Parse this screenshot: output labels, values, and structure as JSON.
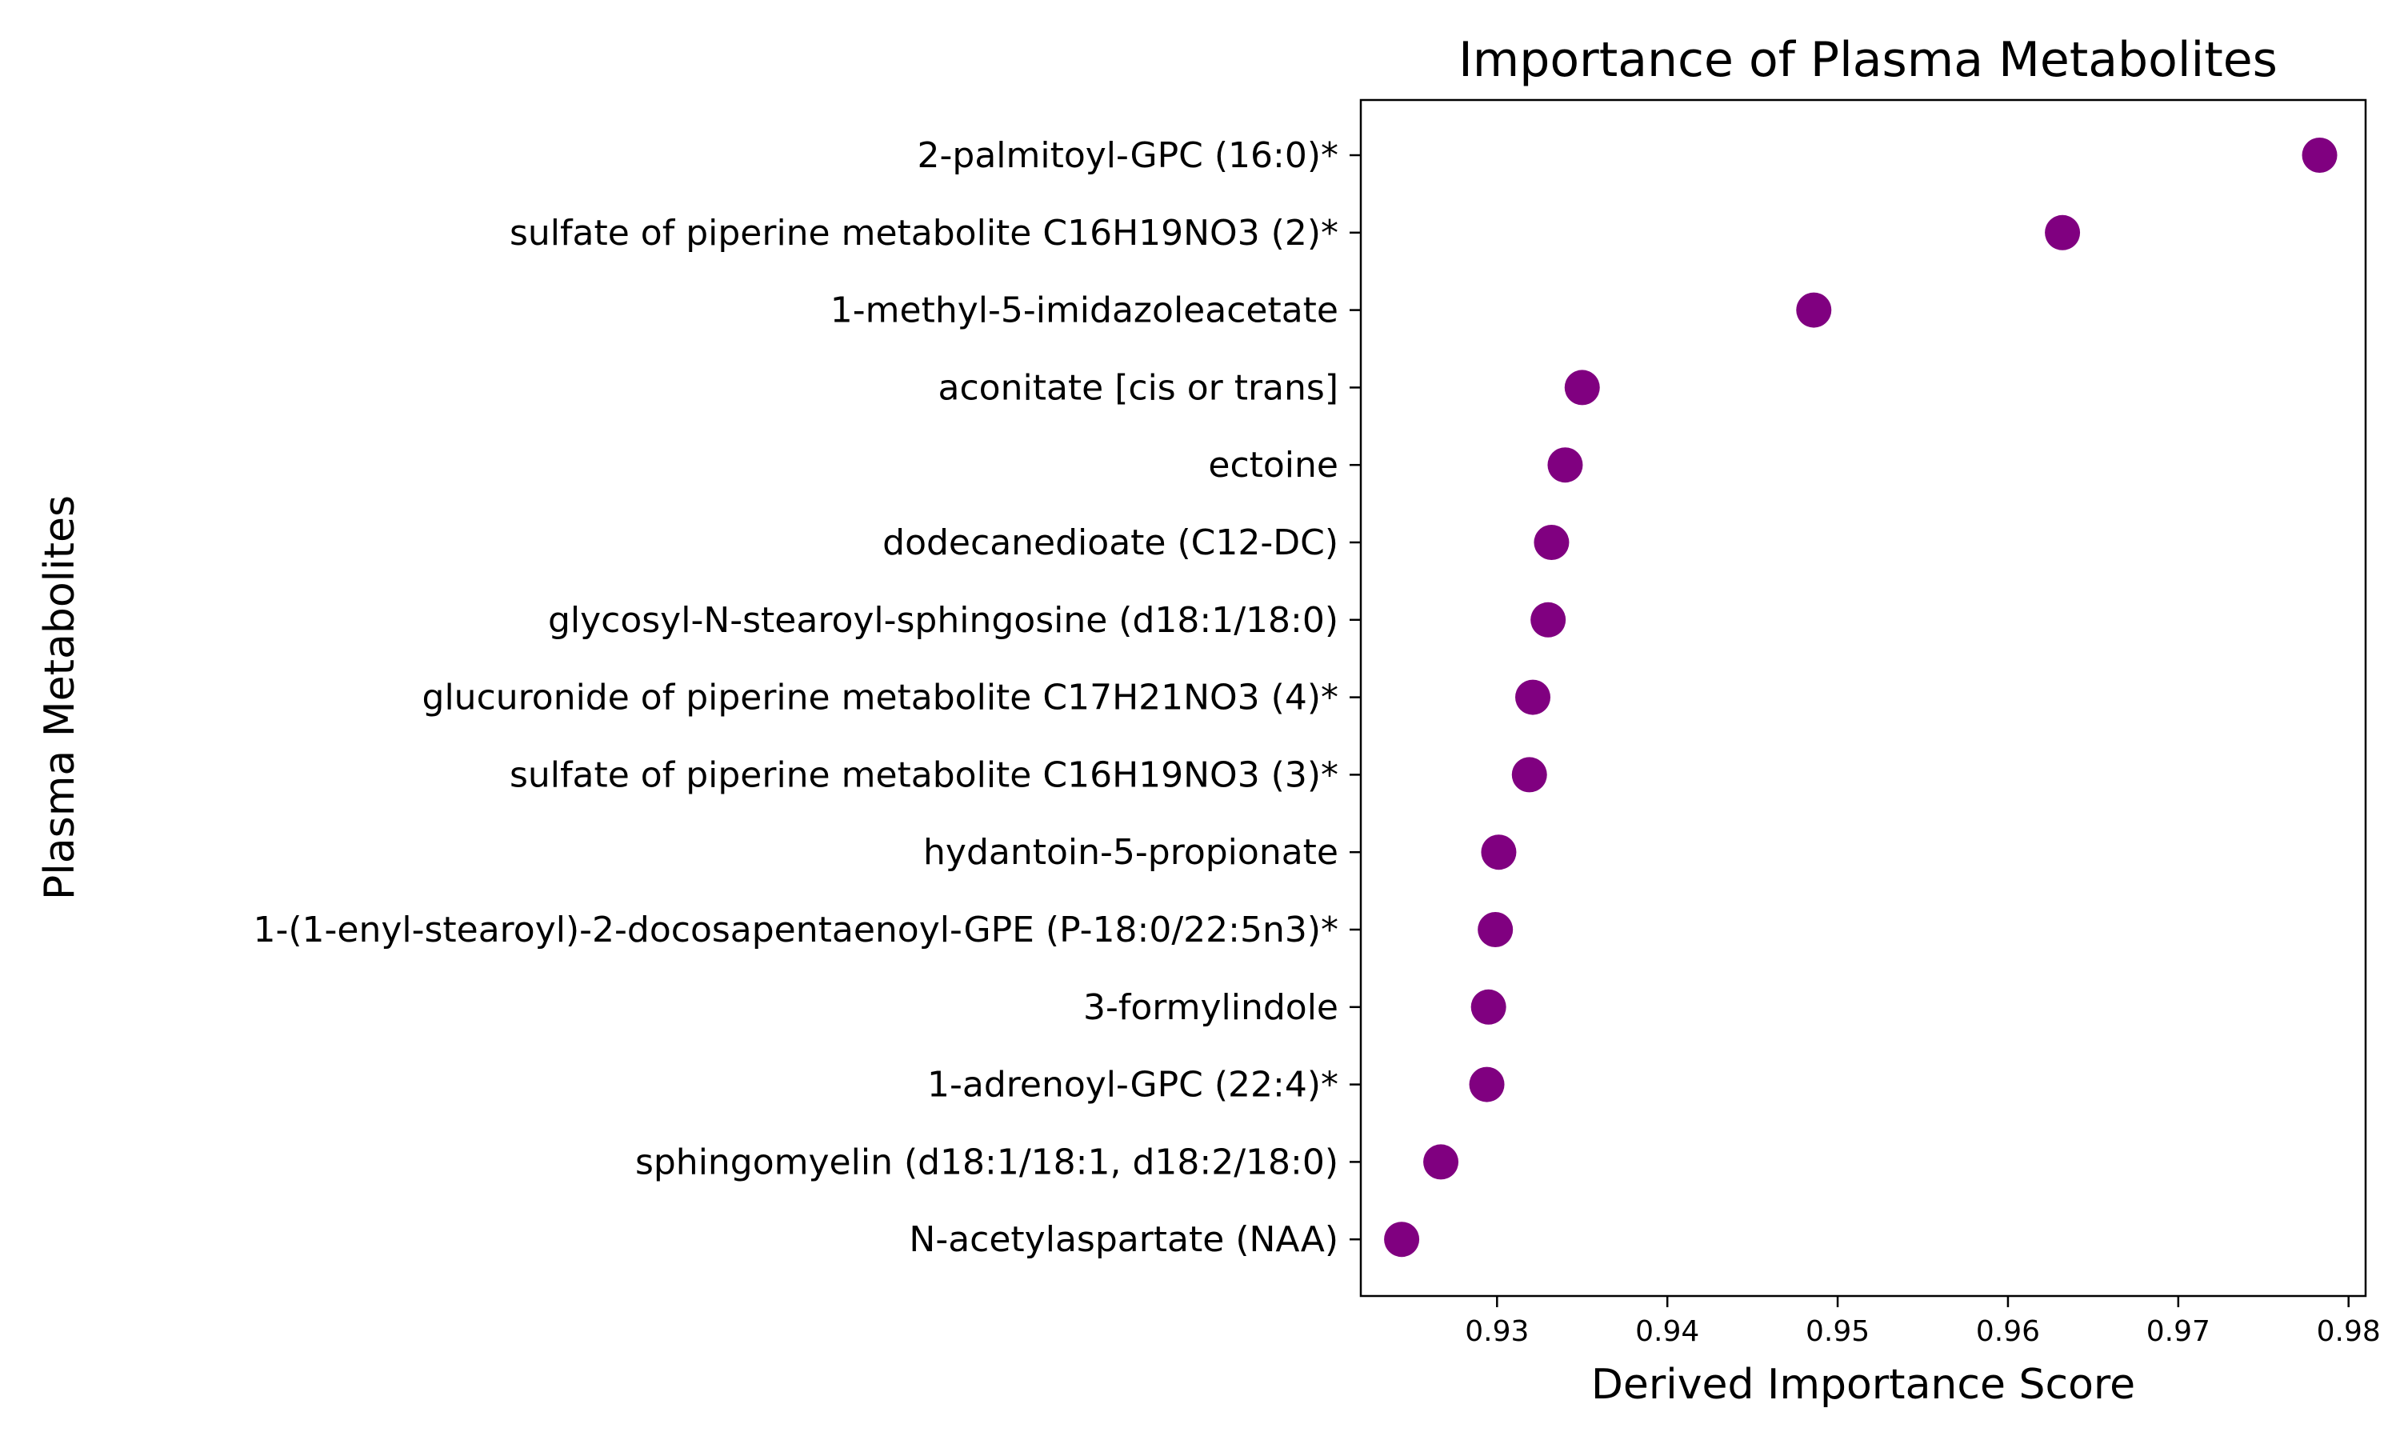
{
  "chart_data": {
    "type": "scatter",
    "title": "Importance of Plasma Metabolites",
    "xlabel": "Derived Importance Score",
    "ylabel": "Plasma Metabolites",
    "xlim": [
      0.922,
      0.981
    ],
    "xticks": [
      "0.93",
      "0.94",
      "0.95",
      "0.96",
      "0.97",
      "0.98"
    ],
    "grid": false,
    "marker_color": "#800080",
    "categories": [
      "2-palmitoyl-GPC (16:0)*",
      "sulfate of piperine metabolite C16H19NO3 (2)*",
      "1-methyl-5-imidazoleacetate",
      "aconitate [cis or trans]",
      "ectoine",
      "dodecanedioate (C12-DC)",
      "glycosyl-N-stearoyl-sphingosine (d18:1/18:0)",
      "glucuronide of piperine metabolite C17H21NO3 (4)*",
      "sulfate of piperine metabolite C16H19NO3 (3)*",
      "hydantoin-5-propionate",
      "1-(1-enyl-stearoyl)-2-docosapentaenoyl-GPE (P-18:0/22:5n3)*",
      "3-formylindole",
      "1-adrenoyl-GPC (22:4)*",
      "sphingomyelin (d18:1/18:1, d18:2/18:0)",
      "N-acetylaspartate (NAA)"
    ],
    "values": [
      0.9783,
      0.9632,
      0.9486,
      0.935,
      0.934,
      0.9332,
      0.933,
      0.9321,
      0.9319,
      0.9301,
      0.9299,
      0.9295,
      0.9294,
      0.9267,
      0.9244
    ]
  }
}
